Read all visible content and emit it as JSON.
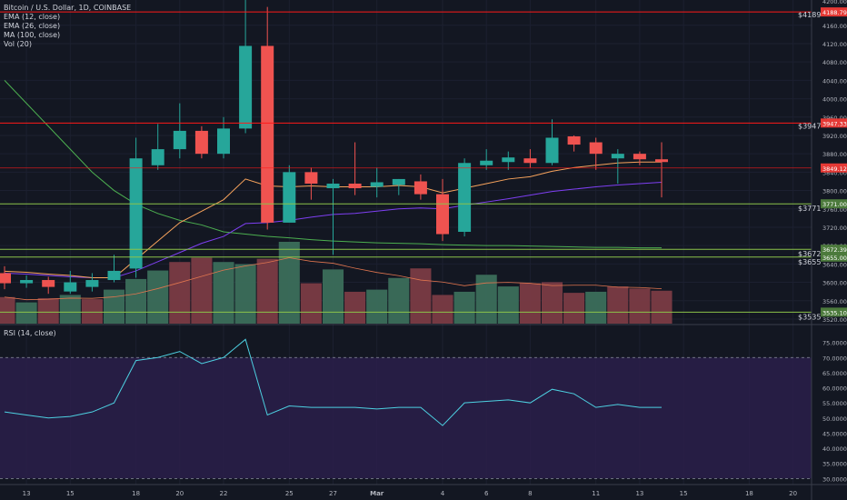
{
  "header": {
    "symbol": "Bitcoin / U.S. Dollar, 1D, COINBASE",
    "indicators": [
      "EMA (12, close)",
      "EMA (26, close)",
      "MA (100, close)",
      "Vol (20)"
    ]
  },
  "rsi_panel": {
    "label": "RSI (14, close)"
  },
  "colors": {
    "background": "#131722",
    "up": "#26a69a",
    "down": "#ef5350",
    "ema12": "#f7a35c",
    "ema26": "#7e3ff2",
    "ma100": "#4caf50",
    "rsi_line": "#4dd0e1",
    "rsi_band": "#2a1f4a",
    "hline_red": "#ff1a1a",
    "hline_green": "#8bc34a",
    "vol_up": "#3b6e5b",
    "vol_down": "#7a3b44"
  },
  "chart_data": {
    "type": "candlestick",
    "dates": [
      "2019-02-12",
      "2019-02-13",
      "2019-02-14",
      "2019-02-15",
      "2019-02-16",
      "2019-02-17",
      "2019-02-18",
      "2019-02-19",
      "2019-02-20",
      "2019-02-21",
      "2019-02-22",
      "2019-02-23",
      "2019-02-24",
      "2019-02-25",
      "2019-02-26",
      "2019-02-27",
      "2019-02-28",
      "2019-03-01",
      "2019-03-02",
      "2019-03-03",
      "2019-03-04",
      "2019-03-05",
      "2019-03-06",
      "2019-03-07",
      "2019-03-08",
      "2019-03-09",
      "2019-03-10",
      "2019-03-11",
      "2019-03-12",
      "2019-03-13",
      "2019-03-14"
    ],
    "ohlc": [
      [
        3620,
        3635,
        3585,
        3598
      ],
      [
        3598,
        3615,
        3588,
        3605
      ],
      [
        3605,
        3612,
        3575,
        3590
      ],
      [
        3580,
        3625,
        3575,
        3600
      ],
      [
        3590,
        3620,
        3580,
        3605
      ],
      [
        3605,
        3660,
        3600,
        3625
      ],
      [
        3630,
        3915,
        3610,
        3870
      ],
      [
        3855,
        3945,
        3845,
        3890
      ],
      [
        3890,
        3990,
        3870,
        3930
      ],
      [
        3930,
        3940,
        3870,
        3880
      ],
      [
        3880,
        3960,
        3870,
        3935
      ],
      [
        3935,
        4240,
        3925,
        4115
      ],
      [
        4115,
        4200,
        3715,
        3730
      ],
      [
        3730,
        3855,
        3735,
        3840
      ],
      [
        3840,
        3850,
        3780,
        3815
      ],
      [
        3805,
        3825,
        3660,
        3815
      ],
      [
        3815,
        3905,
        3790,
        3805
      ],
      [
        3808,
        3850,
        3785,
        3818
      ],
      [
        3812,
        3825,
        3790,
        3825
      ],
      [
        3820,
        3835,
        3780,
        3792
      ],
      [
        3792,
        3825,
        3690,
        3705
      ],
      [
        3710,
        3870,
        3700,
        3860
      ],
      [
        3855,
        3890,
        3845,
        3865
      ],
      [
        3862,
        3885,
        3845,
        3872
      ],
      [
        3870,
        3890,
        3850,
        3860
      ],
      [
        3860,
        3955,
        3855,
        3915
      ],
      [
        3918,
        3920,
        3885,
        3900
      ],
      [
        3905,
        3915,
        3845,
        3880
      ],
      [
        3870,
        3890,
        3815,
        3880
      ],
      [
        3880,
        3885,
        3855,
        3868
      ],
      [
        3868,
        3905,
        3785,
        3862
      ]
    ],
    "volume_up": [
      0,
      1,
      0,
      1,
      0,
      1,
      1,
      1,
      0,
      0,
      1,
      1,
      0,
      1,
      0,
      1,
      0,
      1,
      1,
      0,
      0,
      1,
      1,
      1,
      0,
      0,
      0,
      1,
      0,
      0,
      0
    ],
    "volume": [
      250,
      200,
      240,
      270,
      230,
      320,
      420,
      500,
      580,
      620,
      580,
      560,
      610,
      770,
      380,
      510,
      300,
      320,
      430,
      520,
      270,
      300,
      460,
      350,
      380,
      390,
      290,
      300,
      350,
      330,
      310
    ],
    "ema12": [
      3624,
      3622,
      3618,
      3615,
      3610,
      3610,
      3650,
      3690,
      3730,
      3755,
      3780,
      3825,
      3810,
      3808,
      3810,
      3808,
      3808,
      3808,
      3811,
      3808,
      3795,
      3805,
      3815,
      3825,
      3830,
      3842,
      3850,
      3855,
      3860,
      3862,
      3862
    ],
    "ema26": [
      3620,
      3618,
      3615,
      3612,
      3610,
      3610,
      3625,
      3645,
      3665,
      3685,
      3700,
      3728,
      3730,
      3735,
      3742,
      3748,
      3750,
      3755,
      3760,
      3762,
      3760,
      3768,
      3775,
      3782,
      3790,
      3798,
      3803,
      3808,
      3812,
      3815,
      3818
    ],
    "ma100": [
      4040,
      3990,
      3940,
      3890,
      3840,
      3800,
      3770,
      3750,
      3735,
      3725,
      3710,
      3705,
      3700,
      3697,
      3693,
      3690,
      3688,
      3686,
      3685,
      3684,
      3682,
      3681,
      3680,
      3680,
      3679,
      3678,
      3677,
      3676,
      3676,
      3675,
      3675
    ],
    "rsi": [
      52,
      51,
      50,
      50.5,
      52,
      55,
      69,
      70,
      72,
      68,
      70,
      76,
      51,
      54,
      53.5,
      53.5,
      53.5,
      53,
      53.5,
      53.5,
      47.5,
      55,
      55.5,
      56,
      55,
      59.5,
      58,
      53.5,
      54.5,
      53.5,
      53.5
    ],
    "price_axis": {
      "ylim": [
        3510,
        4215
      ],
      "ticks": [
        "4160.00",
        "4120.00",
        "4080.00",
        "4040.00",
        "4000.00",
        "3960.00",
        "3920.00",
        "3880.00",
        "3840.00",
        "3800.00",
        "3760.00",
        "3720.00",
        "3680.00",
        "3640.00",
        "3600.00",
        "3560.00",
        "3520.00"
      ],
      "tick_values": [
        4160,
        4120,
        4080,
        4040,
        4000,
        3960,
        3920,
        3880,
        3840,
        3800,
        3760,
        3720,
        3680,
        3640,
        3600,
        3560,
        3520
      ],
      "top_partial": "4200.00"
    },
    "levels": [
      {
        "price": 4189,
        "label": "$4189",
        "badge": "4188.79",
        "color": "red"
      },
      {
        "price": 3947,
        "label": "$3947",
        "badge": "3947.33",
        "color": "red"
      },
      {
        "price": 3849.12,
        "label": "",
        "badge": "3849.12",
        "color": "red-thin"
      },
      {
        "price": 3771,
        "label": "$3771",
        "badge": "3771.00",
        "color": "green"
      },
      {
        "price": 3672,
        "label": "$3672",
        "badge": "3672.39",
        "color": "green"
      },
      {
        "price": 3655,
        "label": "$3655",
        "badge": "3655.00",
        "color": "green"
      },
      {
        "price": 3535,
        "label": "$3535",
        "badge": "3535.10",
        "color": "green"
      }
    ],
    "rsi_axis": {
      "ylim": [
        28,
        80
      ],
      "ticks": [
        "75.0000",
        "70.0000",
        "65.0000",
        "60.0000",
        "55.0000",
        "50.0000",
        "45.0000",
        "40.0000",
        "35.0000",
        "30.0000"
      ],
      "tick_values": [
        75,
        70,
        65,
        60,
        55,
        50,
        45,
        40,
        35,
        30
      ],
      "band": [
        30,
        70
      ]
    },
    "x_axis": {
      "labels": [
        "13",
        "15",
        "18",
        "20",
        "22",
        "25",
        "27",
        "Mar",
        "4",
        "6",
        "8",
        "11",
        "13",
        "15",
        "18",
        "20"
      ],
      "label_dates": [
        "2019-02-13",
        "2019-02-15",
        "2019-02-18",
        "2019-02-20",
        "2019-02-22",
        "2019-02-25",
        "2019-02-27",
        "2019-03-01",
        "2019-03-04",
        "2019-03-06",
        "2019-03-08",
        "2019-03-11",
        "2019-03-13",
        "2019-03-15",
        "2019-03-18",
        "2019-03-20"
      ],
      "bold": [
        "Mar"
      ]
    }
  }
}
